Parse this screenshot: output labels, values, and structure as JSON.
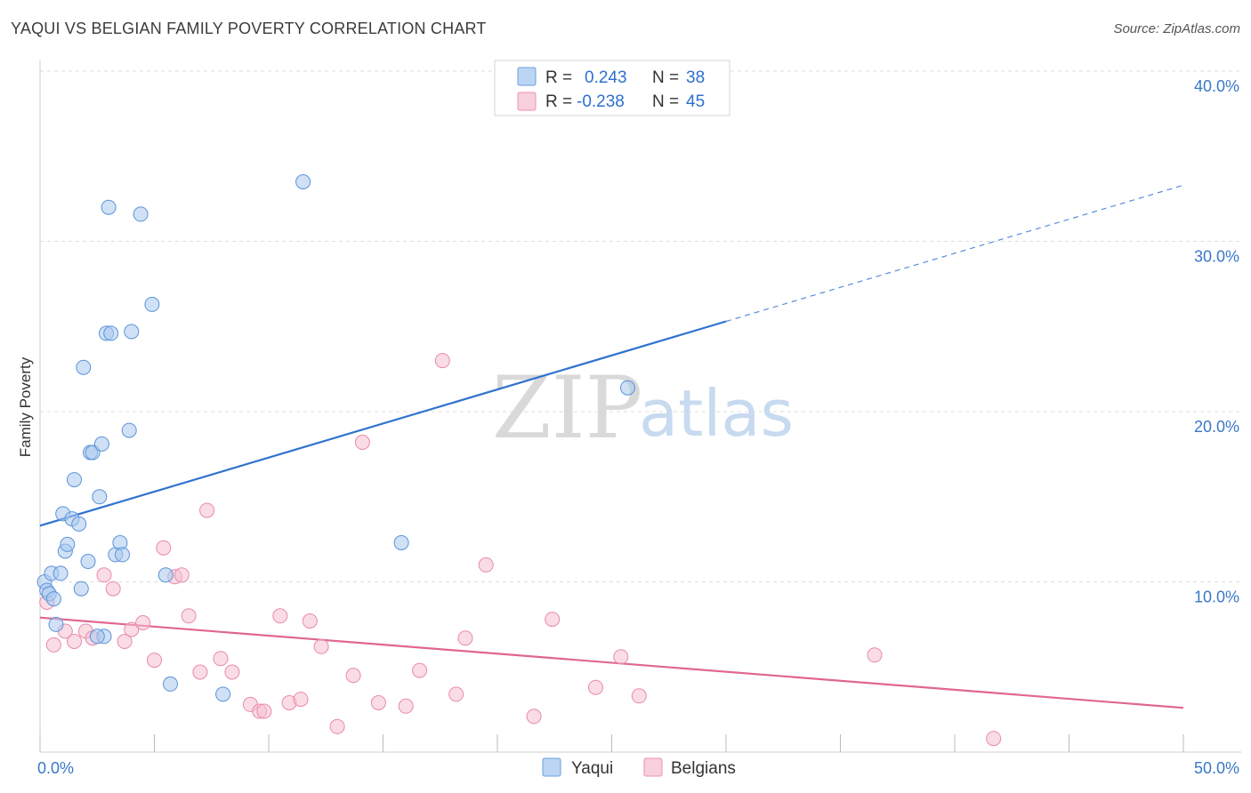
{
  "header": {
    "title": "YAQUI VS BELGIAN FAMILY POVERTY CORRELATION CHART",
    "source": "Source: ZipAtlas.com"
  },
  "watermark": {
    "zip": "ZIP",
    "atlas": "atlas"
  },
  "legend_top": {
    "rows": [
      {
        "r_label": "R =",
        "r_value": "0.243",
        "n_label": "N =",
        "n_value": "38"
      },
      {
        "r_label": "R =",
        "r_value": "-0.238",
        "n_label": "N =",
        "n_value": "45"
      }
    ]
  },
  "legend_bottom": {
    "items": [
      "Yaqui",
      "Belgians"
    ]
  },
  "colors": {
    "yaqui_fill": "#a9c8ef",
    "yaqui_stroke": "#5b93d8",
    "yaqui_line": "#2f72d0",
    "belgian_fill": "#f6bfd0",
    "belgian_stroke": "#e98aaa",
    "belgian_line": "#e0668f",
    "grid": "#dddddd",
    "axis_label": "#3a78c9"
  },
  "chart_data": {
    "type": "scatter",
    "title": "YAQUI VS BELGIAN FAMILY POVERTY CORRELATION CHART",
    "xlabel": "",
    "ylabel": "Family Poverty",
    "xlim": [
      0,
      50
    ],
    "ylim": [
      0,
      40
    ],
    "x_tick_labels": [
      "0.0%",
      "50.0%"
    ],
    "y_ticks": [
      10,
      20,
      30,
      40
    ],
    "y_tick_labels": [
      "10.0%",
      "20.0%",
      "30.0%",
      "40.0%"
    ],
    "grid": true,
    "legend_position": "top-center",
    "series": [
      {
        "name": "Yaqui",
        "r": 0.243,
        "n": 38,
        "trend": {
          "x0": 0,
          "y0": 13.3,
          "x1": 30,
          "y1": 25.3,
          "dashed_to_x": 50,
          "dashed_to_y": 33.3
        },
        "points": [
          [
            0.2,
            10.0
          ],
          [
            0.3,
            9.5
          ],
          [
            0.4,
            9.3
          ],
          [
            0.5,
            10.5
          ],
          [
            0.6,
            9.0
          ],
          [
            0.7,
            7.5
          ],
          [
            0.9,
            10.5
          ],
          [
            1.0,
            14.0
          ],
          [
            1.1,
            11.8
          ],
          [
            1.2,
            12.2
          ],
          [
            1.4,
            13.7
          ],
          [
            1.5,
            16.0
          ],
          [
            1.7,
            13.4
          ],
          [
            1.8,
            9.6
          ],
          [
            1.9,
            22.6
          ],
          [
            2.1,
            11.2
          ],
          [
            2.2,
            17.6
          ],
          [
            2.3,
            17.6
          ],
          [
            2.6,
            15.0
          ],
          [
            2.7,
            18.1
          ],
          [
            2.8,
            6.8
          ],
          [
            2.9,
            24.6
          ],
          [
            3.0,
            32.0
          ],
          [
            3.1,
            24.6
          ],
          [
            3.3,
            11.6
          ],
          [
            3.5,
            12.3
          ],
          [
            3.6,
            11.6
          ],
          [
            3.9,
            18.9
          ],
          [
            4.0,
            24.7
          ],
          [
            4.4,
            31.6
          ],
          [
            4.9,
            26.3
          ],
          [
            5.5,
            10.4
          ],
          [
            5.7,
            4.0
          ],
          [
            8.0,
            3.4
          ],
          [
            11.5,
            33.5
          ],
          [
            15.8,
            12.3
          ],
          [
            25.7,
            21.4
          ],
          [
            2.5,
            6.8
          ]
        ]
      },
      {
        "name": "Belgians",
        "r": -0.238,
        "n": 45,
        "trend": {
          "x0": 0,
          "y0": 7.9,
          "x1": 50,
          "y1": 2.6
        },
        "points": [
          [
            0.3,
            8.8
          ],
          [
            0.6,
            6.3
          ],
          [
            1.1,
            7.1
          ],
          [
            1.5,
            6.5
          ],
          [
            2.0,
            7.1
          ],
          [
            2.3,
            6.7
          ],
          [
            2.8,
            10.4
          ],
          [
            3.2,
            9.6
          ],
          [
            3.7,
            6.5
          ],
          [
            4.0,
            7.2
          ],
          [
            4.5,
            7.6
          ],
          [
            5.0,
            5.4
          ],
          [
            5.4,
            12.0
          ],
          [
            5.9,
            10.3
          ],
          [
            6.2,
            10.4
          ],
          [
            6.5,
            8.0
          ],
          [
            7.0,
            4.7
          ],
          [
            7.3,
            14.2
          ],
          [
            7.9,
            5.5
          ],
          [
            8.4,
            4.7
          ],
          [
            9.2,
            2.8
          ],
          [
            9.6,
            2.4
          ],
          [
            9.8,
            2.4
          ],
          [
            10.5,
            8.0
          ],
          [
            10.9,
            2.9
          ],
          [
            11.4,
            3.1
          ],
          [
            11.8,
            7.7
          ],
          [
            12.3,
            6.2
          ],
          [
            13.0,
            1.5
          ],
          [
            13.7,
            4.5
          ],
          [
            14.1,
            18.2
          ],
          [
            14.8,
            2.9
          ],
          [
            16.0,
            2.7
          ],
          [
            16.6,
            4.8
          ],
          [
            17.6,
            23.0
          ],
          [
            18.2,
            3.4
          ],
          [
            18.6,
            6.7
          ],
          [
            19.5,
            11.0
          ],
          [
            21.6,
            2.1
          ],
          [
            22.4,
            7.8
          ],
          [
            24.3,
            3.8
          ],
          [
            25.4,
            5.6
          ],
          [
            26.2,
            3.3
          ],
          [
            36.5,
            5.7
          ],
          [
            41.7,
            0.8
          ]
        ]
      }
    ]
  }
}
